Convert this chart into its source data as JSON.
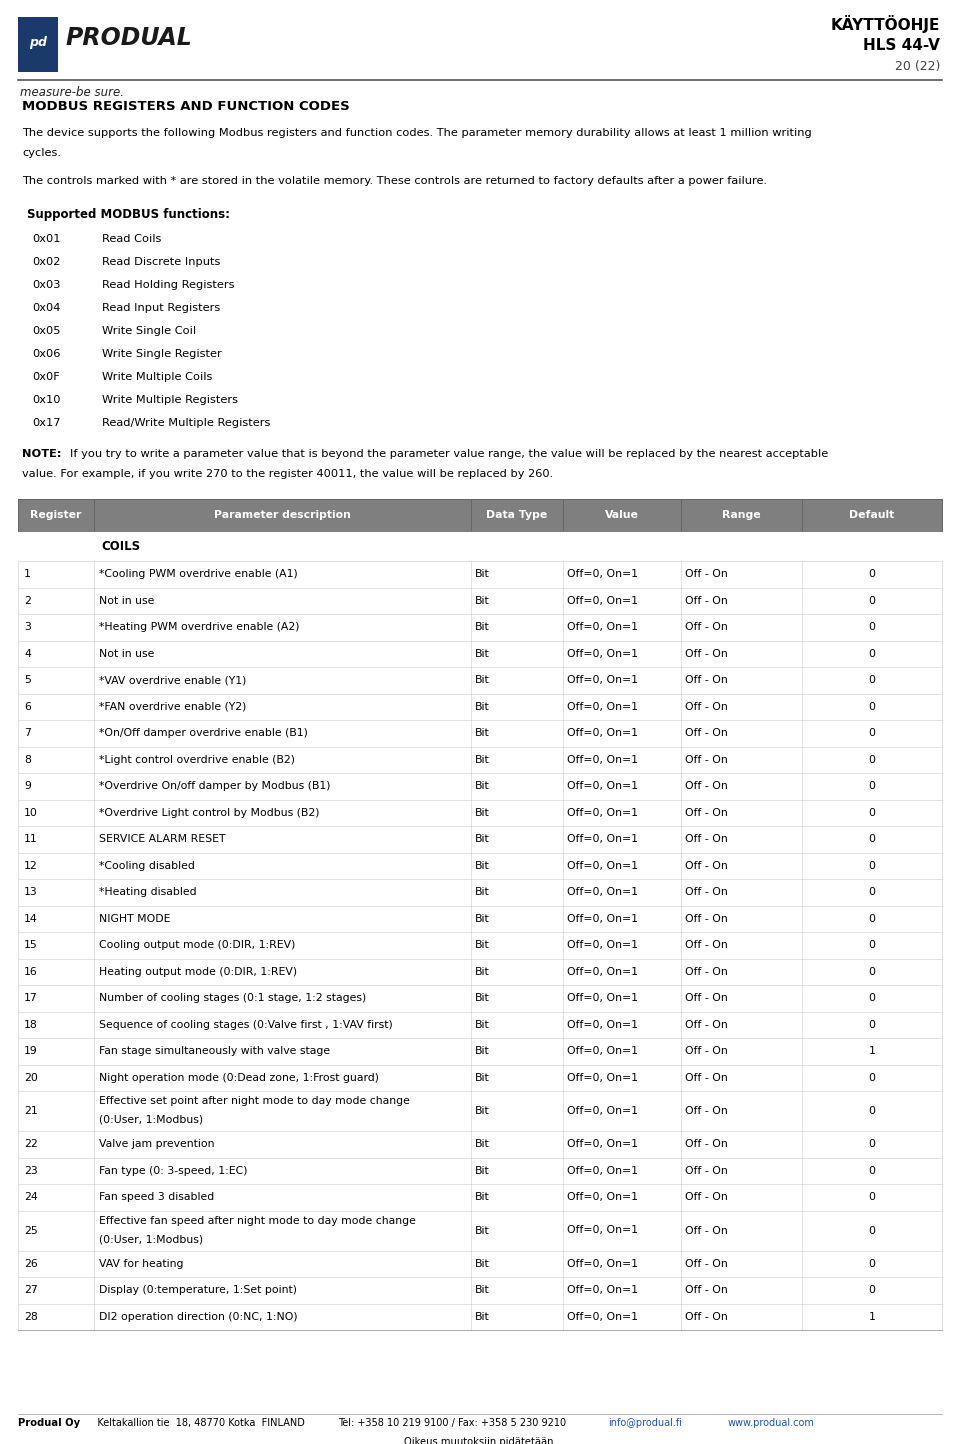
{
  "page_width": 9.6,
  "page_height": 14.44,
  "bg_color": "#ffffff",
  "header_right_line1": "KÄYTTÖOHJE",
  "header_right_line2": "HLS 44-V",
  "header_right_line3": "20 (22)",
  "section_title": "MODBUS REGISTERS AND FUNCTION CODES",
  "para1_line1": "The device supports the following Modbus registers and function codes. The parameter memory durability allows at least 1 million writing",
  "para1_line2": "cycles.",
  "para2": "The controls marked with * are stored in the volatile memory. These controls are returned to factory defaults after a power failure.",
  "supported_title": "Supported MODBUS functions:",
  "modbus_functions": [
    [
      "0x01",
      "Read Coils"
    ],
    [
      "0x02",
      "Read Discrete Inputs"
    ],
    [
      "0x03",
      "Read Holding Registers"
    ],
    [
      "0x04",
      "Read Input Registers"
    ],
    [
      "0x05",
      "Write Single Coil"
    ],
    [
      "0x06",
      "Write Single Register"
    ],
    [
      "0x0F",
      "Write Multiple Coils"
    ],
    [
      "0x10",
      "Write Multiple Registers"
    ],
    [
      "0x17",
      "Read/Write Multiple Registers"
    ]
  ],
  "note_line1": "If you try to write a parameter value that is beyond the parameter value range, the value will be replaced by the nearest acceptable",
  "note_line2": "value. For example, if you write 270 to the register 40011, the value will be replaced by 260.",
  "table_header": [
    "Register",
    "Parameter description",
    "Data Type",
    "Value",
    "Range",
    "Default"
  ],
  "table_header_bg": "#7f7f7f",
  "table_header_fg": "#ffffff",
  "coils_label": "COILS",
  "table_rows": [
    [
      "1",
      "*Cooling PWM overdrive enable (A1)",
      "Bit",
      "Off=0, On=1",
      "Off - On",
      "0",
      false
    ],
    [
      "2",
      "Not in use",
      "Bit",
      "Off=0, On=1",
      "Off - On",
      "0",
      false
    ],
    [
      "3",
      "*Heating PWM overdrive enable (A2)",
      "Bit",
      "Off=0, On=1",
      "Off - On",
      "0",
      false
    ],
    [
      "4",
      "Not in use",
      "Bit",
      "Off=0, On=1",
      "Off - On",
      "0",
      false
    ],
    [
      "5",
      "*VAV overdrive enable (Y1)",
      "Bit",
      "Off=0, On=1",
      "Off - On",
      "0",
      false
    ],
    [
      "6",
      "*FAN overdrive enable (Y2)",
      "Bit",
      "Off=0, On=1",
      "Off - On",
      "0",
      false
    ],
    [
      "7",
      "*On/Off damper overdrive enable (B1)",
      "Bit",
      "Off=0, On=1",
      "Off - On",
      "0",
      false
    ],
    [
      "8",
      "*Light control overdrive enable (B2)",
      "Bit",
      "Off=0, On=1",
      "Off - On",
      "0",
      false
    ],
    [
      "9",
      "*Overdrive On/off damper by Modbus (B1)",
      "Bit",
      "Off=0, On=1",
      "Off - On",
      "0",
      false
    ],
    [
      "10",
      "*Overdrive Light control by Modbus (B2)",
      "Bit",
      "Off=0, On=1",
      "Off - On",
      "0",
      false
    ],
    [
      "11",
      "SERVICE ALARM RESET",
      "Bit",
      "Off=0, On=1",
      "Off - On",
      "0",
      false
    ],
    [
      "12",
      "*Cooling disabled",
      "Bit",
      "Off=0, On=1",
      "Off - On",
      "0",
      false
    ],
    [
      "13",
      "*Heating disabled",
      "Bit",
      "Off=0, On=1",
      "Off - On",
      "0",
      false
    ],
    [
      "14",
      "NIGHT MODE",
      "Bit",
      "Off=0, On=1",
      "Off - On",
      "0",
      false
    ],
    [
      "15",
      "Cooling output mode (0:DIR, 1:REV)",
      "Bit",
      "Off=0, On=1",
      "Off - On",
      "0",
      false
    ],
    [
      "16",
      "Heating output mode (0:DIR, 1:REV)",
      "Bit",
      "Off=0, On=1",
      "Off - On",
      "0",
      false
    ],
    [
      "17",
      "Number of cooling stages (0:1 stage, 1:2 stages)",
      "Bit",
      "Off=0, On=1",
      "Off - On",
      "0",
      false
    ],
    [
      "18",
      "Sequence of cooling stages (0:Valve first , 1:VAV first)",
      "Bit",
      "Off=0, On=1",
      "Off - On",
      "0",
      false
    ],
    [
      "19",
      "Fan stage simultaneously with valve stage",
      "Bit",
      "Off=0, On=1",
      "Off - On",
      "1",
      false
    ],
    [
      "20",
      "Night operation mode (0:Dead zone, 1:Frost guard)",
      "Bit",
      "Off=0, On=1",
      "Off - On",
      "0",
      false
    ],
    [
      "21",
      "Effective set point after night mode to day mode change\n(0:User, 1:Modbus)",
      "Bit",
      "Off=0, On=1",
      "Off - On",
      "0",
      true
    ],
    [
      "22",
      "Valve jam prevention",
      "Bit",
      "Off=0, On=1",
      "Off - On",
      "0",
      false
    ],
    [
      "23",
      "Fan type (0: 3-speed, 1:EC)",
      "Bit",
      "Off=0, On=1",
      "Off - On",
      "0",
      false
    ],
    [
      "24",
      "Fan speed 3 disabled",
      "Bit",
      "Off=0, On=1",
      "Off - On",
      "0",
      false
    ],
    [
      "25",
      "Effective fan speed after night mode to day mode change\n(0:User, 1:Modbus)",
      "Bit",
      "Off=0, On=1",
      "Off - On",
      "0",
      true
    ],
    [
      "26",
      "VAV for heating",
      "Bit",
      "Off=0, On=1",
      "Off - On",
      "0",
      false
    ],
    [
      "27",
      "Display (0:temperature, 1:Set point)",
      "Bit",
      "Off=0, On=1",
      "Off - On",
      "0",
      false
    ],
    [
      "28",
      "DI2 operation direction (0:NC, 1:NO)",
      "Bit",
      "Off=0, On=1",
      "Off - On",
      "1",
      false
    ]
  ],
  "footer_left_bold": "Produal Oy",
  "footer_addr": "   Keltakallion tie  18, 48770 Kotka  FINLAND",
  "footer_tel": "Tel: +358 10 219 9100 / Fax: +358 5 230 9210",
  "footer_email": "info@produal.fi",
  "footer_web": "www.produal.com",
  "footer_bottom": "Oikeus muutoksiin pidätetään."
}
